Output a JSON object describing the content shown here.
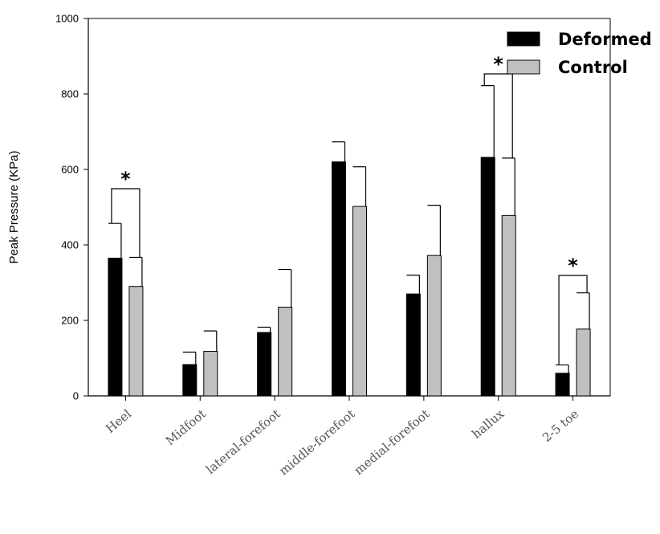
{
  "chart_data": {
    "type": "bar",
    "title": "",
    "xlabel": "",
    "ylabel": "Peak Pressure (KPa)",
    "ylim": [
      0,
      1000
    ],
    "yticks": [
      "0",
      "200",
      "400",
      "600",
      "800",
      "1000"
    ],
    "categories": [
      "Heel",
      "Midfoot",
      "lateral-forefoot",
      "middle-forefoot",
      "medial-forefoot",
      "hallux",
      "2-5 toe"
    ],
    "series": [
      {
        "name": "Deformed",
        "color": "#000000",
        "values": [
          365,
          83,
          168,
          620,
          270,
          632,
          60
        ],
        "error": [
          92,
          33,
          14,
          53,
          50,
          190,
          22
        ]
      },
      {
        "name": "Control",
        "color": "#c0c0c0",
        "values": [
          290,
          118,
          235,
          502,
          372,
          478,
          177
        ],
        "error": [
          77,
          54,
          100,
          105,
          133,
          152,
          96
        ]
      }
    ],
    "significance": [
      {
        "category": "Heel",
        "label": "*"
      },
      {
        "category": "hallux",
        "label": "*"
      },
      {
        "category": "2-5 toe",
        "label": "*"
      }
    ],
    "legend_position": "top-right",
    "grid": false
  }
}
